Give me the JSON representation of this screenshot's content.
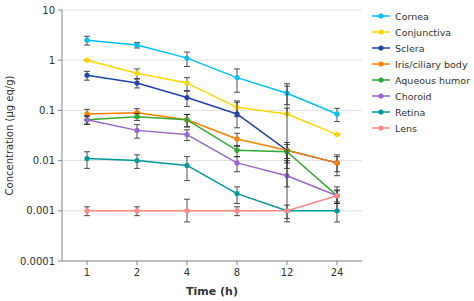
{
  "chart_data": {
    "type": "line",
    "categories": [
      "1",
      "2",
      "4",
      "8",
      "12",
      "24"
    ],
    "series": [
      {
        "name": "Cornea",
        "color": "#00BFFF",
        "marker": "circle",
        "values": [
          2.5,
          2.0,
          1.1,
          0.45,
          0.22,
          0.085
        ],
        "yerr_low": [
          0.5,
          0.25,
          0.35,
          0.22,
          0.09,
          0.025
        ],
        "yerr_high": [
          0.5,
          0.25,
          0.35,
          0.22,
          0.12,
          0.025
        ]
      },
      {
        "name": "Conjunctiva",
        "color": "#FFD700",
        "marker": "circle",
        "values": [
          1.0,
          0.55,
          0.35,
          0.115,
          0.085,
          0.033
        ],
        "yerr_low": [
          0.0,
          0.12,
          0.1,
          0.04,
          0.0,
          0.0
        ],
        "yerr_high": [
          0.0,
          0.12,
          0.1,
          0.04,
          0.22,
          0.0
        ]
      },
      {
        "name": "Sclera",
        "color": "#2244AA",
        "marker": "circle",
        "values": [
          0.5,
          0.35,
          0.18,
          0.085,
          0.016,
          0.009
        ],
        "yerr_low": [
          0.1,
          0.07,
          0.06,
          0.04,
          0.007,
          0.004
        ],
        "yerr_high": [
          0.1,
          0.07,
          0.06,
          0.06,
          0.007,
          0.004
        ]
      },
      {
        "name": "Iris/ciliary body",
        "color": "#FF7F00",
        "marker": "circle",
        "values": [
          0.085,
          0.09,
          0.065,
          0.027,
          0.016,
          0.009
        ],
        "yerr_low": [
          0.02,
          0.018,
          0.018,
          0.008,
          0.005,
          0.003
        ],
        "yerr_high": [
          0.02,
          0.018,
          0.018,
          0.008,
          0.005,
          0.003
        ]
      },
      {
        "name": "Aqueous humor",
        "color": "#33AA33",
        "marker": "circle",
        "values": [
          0.065,
          0.075,
          0.065,
          0.016,
          0.015,
          0.002
        ],
        "yerr_low": [
          0.012,
          0.012,
          0.018,
          0.004,
          0.008,
          0.001
        ],
        "yerr_high": [
          0.012,
          0.012,
          0.018,
          0.004,
          0.001,
          0.001
        ]
      },
      {
        "name": "Choroid",
        "color": "#9966CC",
        "marker": "circle",
        "values": [
          0.065,
          0.04,
          0.033,
          0.009,
          0.005,
          0.002
        ],
        "yerr_low": [
          0.012,
          0.012,
          0.008,
          0.003,
          0.002,
          0.0005
        ],
        "yerr_high": [
          0.012,
          0.012,
          0.008,
          0.003,
          0.005,
          0.0005
        ]
      },
      {
        "name": "Retina",
        "color": "#009999",
        "marker": "circle",
        "values": [
          0.011,
          0.01,
          0.008,
          0.0022,
          0.001,
          0.001
        ],
        "yerr_low": [
          0.004,
          0.003,
          0.004,
          0.0008,
          0.0004,
          0.0004
        ],
        "yerr_high": [
          0.004,
          0.003,
          0.004,
          0.0008,
          0.11,
          0.0004
        ]
      },
      {
        "name": "Lens",
        "color": "#FF8888",
        "marker": "circle",
        "values": [
          0.001,
          0.001,
          0.001,
          0.001,
          0.001,
          0.002
        ],
        "yerr_low": [
          0.0002,
          0.0002,
          0.0004,
          0.0002,
          0.0003,
          0.0006
        ],
        "yerr_high": [
          0.0002,
          0.0002,
          0.0007,
          0.0002,
          0.0003,
          0.0006
        ]
      }
    ],
    "x_label": "Time (h)",
    "y_label": "Concentration (μg eq/g)",
    "ylim": [
      0.0001,
      10
    ],
    "yticks": [
      0.0001,
      0.001,
      0.01,
      0.1,
      1,
      10
    ],
    "log": "y",
    "grid": true,
    "legend": "right"
  }
}
